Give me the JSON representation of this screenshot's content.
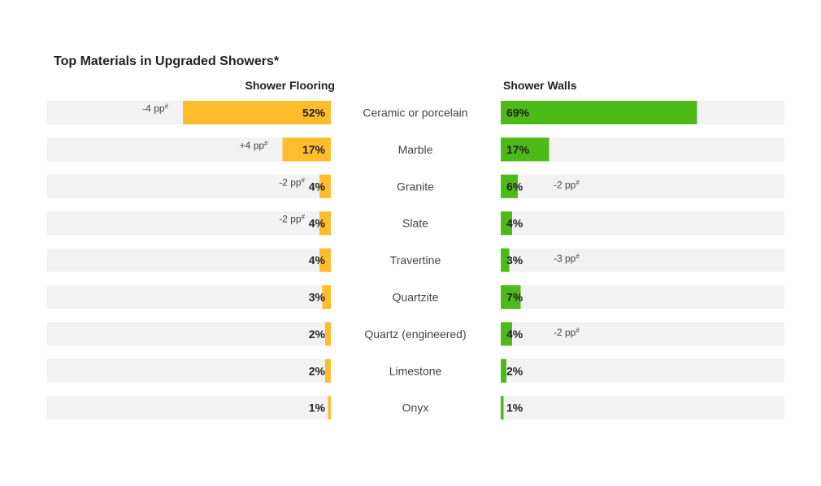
{
  "chart_data": {
    "type": "bar",
    "title": "Top Materials in Upgraded Showers*",
    "categories": [
      "Ceramic or porcelain",
      "Marble",
      "Granite",
      "Slate",
      "Travertine",
      "Quartzite",
      "Quartz (engineered)",
      "Limestone",
      "Onyx"
    ],
    "value_format": "percent",
    "xlim": [
      0,
      100
    ],
    "series": [
      {
        "name": "Shower Flooring",
        "color": "#FFBC2B",
        "direction": "left",
        "values": [
          52,
          17,
          4,
          4,
          4,
          3,
          2,
          2,
          1
        ],
        "labels": [
          "52%",
          "17%",
          "4%",
          "4%",
          "4%",
          "3%",
          "2%",
          "2%",
          "1%"
        ],
        "changes": [
          "-4 pp",
          "+4 pp",
          "-2 pp",
          "-2 pp",
          "",
          "",
          "",
          "",
          ""
        ]
      },
      {
        "name": "Shower Walls",
        "color": "#4CBB17",
        "direction": "right",
        "values": [
          69,
          17,
          6,
          4,
          3,
          7,
          4,
          2,
          1
        ],
        "labels": [
          "69%",
          "17%",
          "6%",
          "4%",
          "3%",
          "7%",
          "4%",
          "2%",
          "1%"
        ],
        "changes": [
          "",
          "",
          "-2 pp",
          "",
          "-3 pp",
          "",
          "-2 pp",
          "",
          ""
        ]
      }
    ],
    "change_marker": "#",
    "track_color": "#F2F2F2"
  }
}
